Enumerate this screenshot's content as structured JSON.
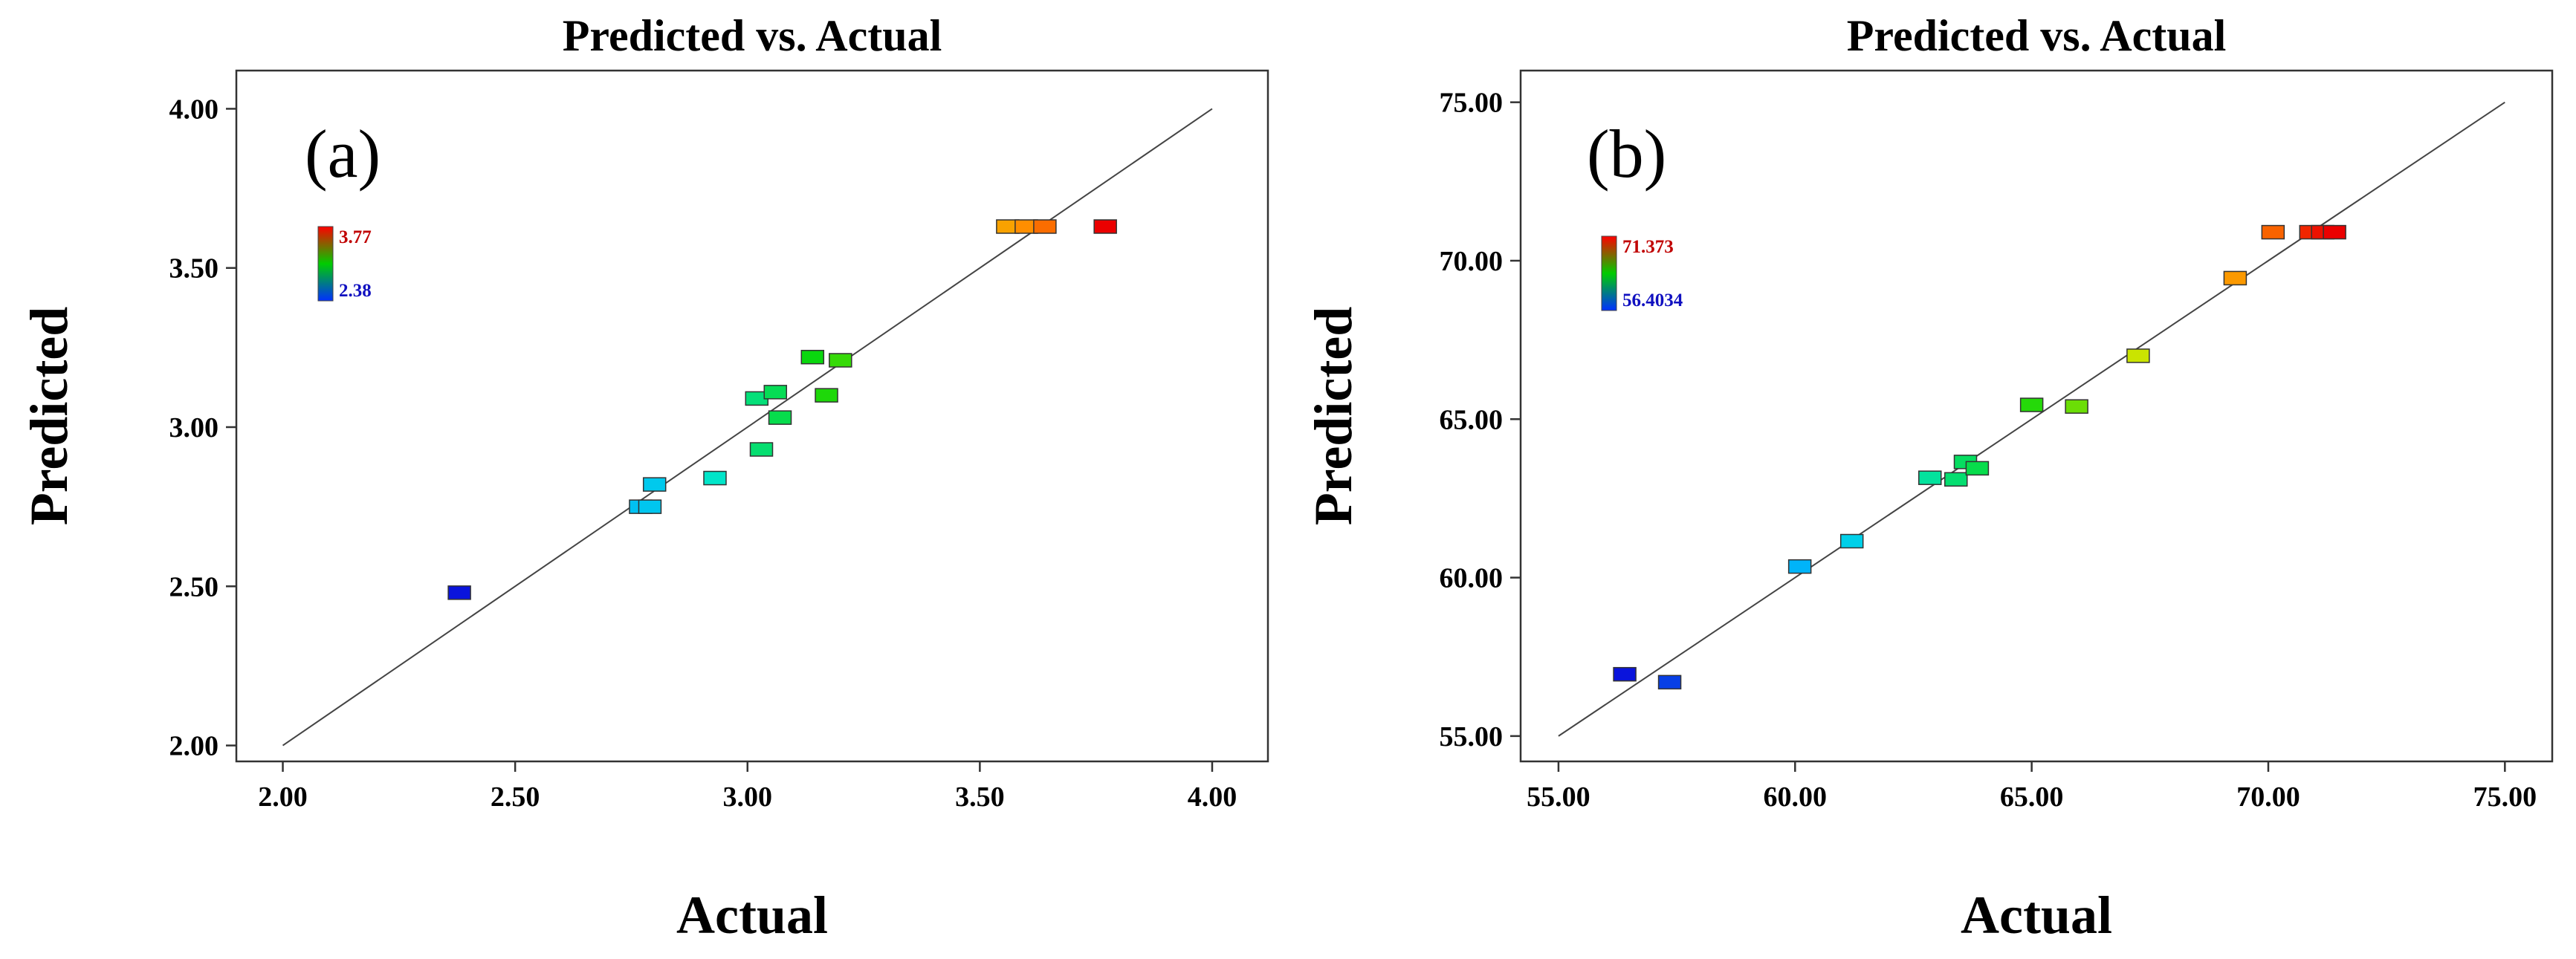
{
  "chart_data": [
    {
      "type": "scatter",
      "panel_label": "(a)",
      "title": "Predicted vs. Actual",
      "xlabel": "Actual",
      "ylabel": "Predicted",
      "xlim": [
        1.9,
        4.12
      ],
      "ylim": [
        1.95,
        4.12
      ],
      "xticks": [
        "2.00",
        "2.50",
        "3.00",
        "3.50",
        "4.00"
      ],
      "yticks": [
        "2.00",
        "2.50",
        "3.00",
        "3.50",
        "4.00"
      ],
      "diagonal": [
        2.0,
        4.0
      ],
      "color_scale": {
        "min": 2.38,
        "max": 3.77,
        "min_label": "2.38",
        "max_label": "3.77",
        "min_color": "#1010c0",
        "max_color": "#c00000"
      },
      "points": [
        {
          "x": 2.38,
          "y": 2.48
        },
        {
          "x": 2.77,
          "y": 2.75
        },
        {
          "x": 2.79,
          "y": 2.75
        },
        {
          "x": 2.8,
          "y": 2.82
        },
        {
          "x": 2.93,
          "y": 2.84
        },
        {
          "x": 3.03,
          "y": 2.93
        },
        {
          "x": 3.02,
          "y": 3.09
        },
        {
          "x": 3.07,
          "y": 3.03
        },
        {
          "x": 3.06,
          "y": 3.11
        },
        {
          "x": 3.14,
          "y": 3.22
        },
        {
          "x": 3.17,
          "y": 3.1
        },
        {
          "x": 3.2,
          "y": 3.21
        },
        {
          "x": 3.56,
          "y": 3.63
        },
        {
          "x": 3.6,
          "y": 3.63
        },
        {
          "x": 3.64,
          "y": 3.63
        },
        {
          "x": 3.77,
          "y": 3.63
        }
      ]
    },
    {
      "type": "scatter",
      "panel_label": "(b)",
      "title": "Predicted vs. Actual",
      "xlabel": "Actual",
      "ylabel": "Predicted",
      "xlim": [
        54.2,
        76.0
      ],
      "ylim": [
        54.2,
        76.0
      ],
      "xticks": [
        "55.00",
        "60.00",
        "65.00",
        "70.00",
        "75.00"
      ],
      "yticks": [
        "55.00",
        "60.00",
        "65.00",
        "70.00",
        "75.00"
      ],
      "diagonal": [
        55.0,
        75.0
      ],
      "color_scale": {
        "min": 56.4034,
        "max": 71.373,
        "min_label": "56.4034",
        "max_label": "71.373",
        "min_color": "#1010c0",
        "max_color": "#c00000"
      },
      "points": [
        {
          "x": 56.4,
          "y": 56.95
        },
        {
          "x": 57.35,
          "y": 56.7
        },
        {
          "x": 60.1,
          "y": 60.35
        },
        {
          "x": 61.2,
          "y": 61.15
        },
        {
          "x": 62.85,
          "y": 63.15
        },
        {
          "x": 63.4,
          "y": 63.1
        },
        {
          "x": 63.6,
          "y": 63.65
        },
        {
          "x": 63.85,
          "y": 63.45
        },
        {
          "x": 65.0,
          "y": 65.45
        },
        {
          "x": 65.95,
          "y": 65.4
        },
        {
          "x": 67.25,
          "y": 67.0
        },
        {
          "x": 69.3,
          "y": 69.45
        },
        {
          "x": 70.1,
          "y": 70.9
        },
        {
          "x": 70.9,
          "y": 70.9
        },
        {
          "x": 71.15,
          "y": 70.9
        },
        {
          "x": 71.4,
          "y": 70.9
        }
      ]
    }
  ]
}
